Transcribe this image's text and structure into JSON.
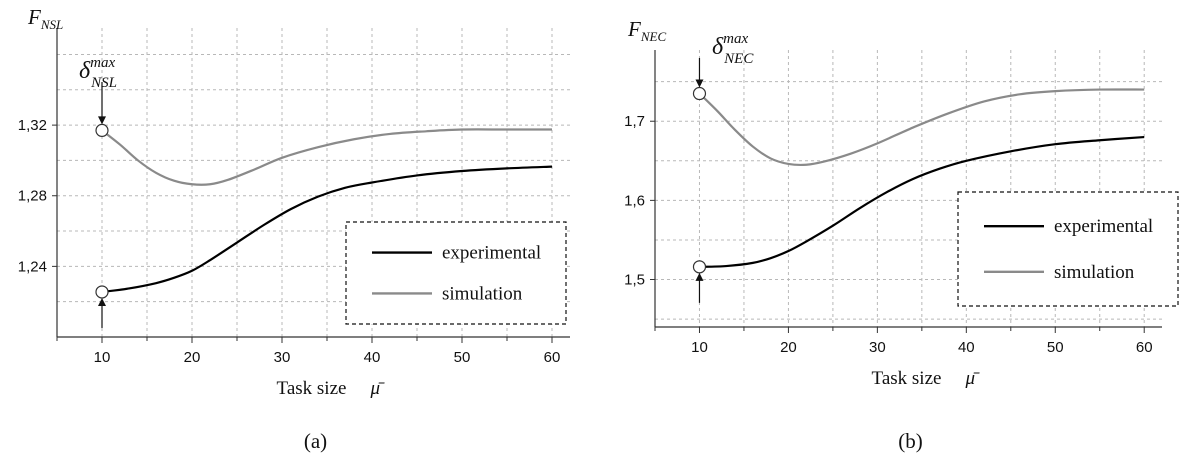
{
  "chart_data": [
    {
      "type": "line",
      "panel_label": "(a)",
      "ylabel": {
        "main": "F",
        "sub": "NSL"
      },
      "xlabel": "Task size",
      "xlabel_symbol": "μ̄",
      "annotation": {
        "main": "δ",
        "sup": "max",
        "sub": "NSL"
      },
      "xlim": [
        5,
        62
      ],
      "ylim": [
        1.2,
        1.375
      ],
      "xticks": [
        10,
        20,
        30,
        40,
        50,
        60
      ],
      "yticks": [
        1.24,
        1.28,
        1.32
      ],
      "ytick_labels": [
        "1,24",
        "1,28",
        "1,32"
      ],
      "grid": true,
      "legend": "bottom-right",
      "series": [
        {
          "name": "experimental",
          "color": "#000000",
          "x": [
            10,
            13,
            16,
            18,
            20,
            22,
            25,
            28,
            31,
            34,
            37,
            40,
            45,
            50,
            55,
            60
          ],
          "y": [
            1.2255,
            1.2275,
            1.2305,
            1.2335,
            1.2375,
            1.2435,
            1.2535,
            1.2635,
            1.2725,
            1.2795,
            1.2845,
            1.2875,
            1.2915,
            1.294,
            1.2955,
            1.2965
          ]
        },
        {
          "name": "simulation",
          "color": "#8a8a8a",
          "x": [
            10,
            12,
            14,
            16,
            18,
            20,
            22,
            24,
            27,
            30,
            34,
            38,
            42,
            46,
            50,
            55,
            60
          ],
          "y": [
            1.317,
            1.309,
            1.3,
            1.293,
            1.2885,
            1.2865,
            1.2865,
            1.289,
            1.295,
            1.3015,
            1.3075,
            1.312,
            1.315,
            1.3165,
            1.3175,
            1.3175,
            1.3175
          ]
        }
      ]
    },
    {
      "type": "line",
      "panel_label": "(b)",
      "ylabel": {
        "main": "F",
        "sub": "NEC"
      },
      "xlabel": "Task size",
      "xlabel_symbol": "μ̄",
      "annotation": {
        "main": "δ",
        "sup": "max",
        "sub": "NEC"
      },
      "xlim": [
        5,
        62
      ],
      "ylim": [
        1.44,
        1.79
      ],
      "xticks": [
        10,
        20,
        30,
        40,
        50,
        60
      ],
      "yticks": [
        1.5,
        1.6,
        1.7
      ],
      "ytick_labels": [
        "1,5",
        "1,6",
        "1,7"
      ],
      "grid": true,
      "legend": "bottom-right",
      "series": [
        {
          "name": "experimental",
          "color": "#000000",
          "x": [
            10,
            13,
            16,
            18,
            20,
            22,
            25,
            28,
            31,
            34,
            37,
            40,
            45,
            50,
            55,
            60
          ],
          "y": [
            1.516,
            1.517,
            1.521,
            1.527,
            1.536,
            1.548,
            1.568,
            1.59,
            1.61,
            1.627,
            1.64,
            1.65,
            1.662,
            1.671,
            1.676,
            1.68
          ]
        },
        {
          "name": "simulation",
          "color": "#8a8a8a",
          "x": [
            10,
            12,
            14,
            16,
            18,
            20,
            22,
            24,
            27,
            30,
            34,
            38,
            42,
            46,
            50,
            55,
            60
          ],
          "y": [
            1.735,
            1.713,
            1.689,
            1.668,
            1.653,
            1.646,
            1.645,
            1.649,
            1.659,
            1.672,
            1.692,
            1.71,
            1.725,
            1.734,
            1.738,
            1.74,
            1.74
          ]
        }
      ]
    }
  ]
}
